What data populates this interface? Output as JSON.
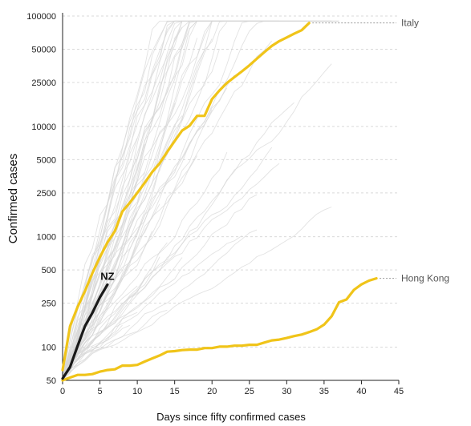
{
  "chart_data": {
    "type": "line",
    "xlabel": "Days since fifty confirmed cases",
    "ylabel": "Confirmed cases",
    "y_scale": "log",
    "xlim": [
      0,
      45
    ],
    "ylim": [
      50,
      100000
    ],
    "x_ticks": [
      0,
      5,
      10,
      15,
      20,
      25,
      30,
      35,
      40,
      45
    ],
    "y_ticks": [
      50,
      100,
      250,
      500,
      1000,
      2500,
      5000,
      10000,
      25000,
      50000,
      100000
    ],
    "y_tick_labels": [
      "50",
      "100",
      "250",
      "500",
      "1000",
      "2500",
      "5000",
      "10000",
      "25000",
      "50000",
      "100000"
    ],
    "grid": "horizontal dashed",
    "colors": {
      "highlight": "#f0c419",
      "nz": "#1a1a1a",
      "background_series": "#d6d6d6",
      "grid": "#d9d9d9"
    },
    "series": [
      {
        "name": "Italy",
        "color": "#f0c419",
        "x": [
          0,
          1,
          2,
          3,
          4,
          5,
          6,
          7,
          8,
          9,
          10,
          11,
          12,
          13,
          14,
          15,
          16,
          17,
          18,
          19,
          20,
          21,
          22,
          23,
          24,
          25,
          26,
          27,
          28,
          29,
          30,
          31,
          32,
          33
        ],
        "y": [
          62,
          155,
          230,
          322,
          470,
          655,
          888,
          1128,
          1694,
          2036,
          2502,
          3089,
          3858,
          4636,
          5883,
          7375,
          9172,
          10149,
          12462,
          12462,
          17660,
          21157,
          24747,
          27980,
          31506,
          35713,
          41035,
          47021,
          53578,
          59138,
          63927,
          69176,
          74386,
          86498
        ]
      },
      {
        "name": "Hong Kong",
        "color": "#f0c419",
        "x": [
          0,
          1,
          2,
          3,
          4,
          5,
          6,
          7,
          8,
          9,
          10,
          11,
          12,
          13,
          14,
          15,
          16,
          17,
          18,
          19,
          20,
          21,
          22,
          23,
          24,
          25,
          26,
          27,
          28,
          29,
          30,
          31,
          32,
          33,
          34,
          35,
          36,
          37,
          38,
          39,
          40,
          41,
          42
        ],
        "y": [
          50,
          53,
          56,
          56,
          57,
          60,
          62,
          63,
          68,
          68,
          69,
          74,
          79,
          84,
          91,
          92,
          94,
          95,
          95,
          98,
          98,
          101,
          101,
          103,
          103,
          105,
          105,
          110,
          115,
          117,
          121,
          126,
          130,
          137,
          145,
          160,
          190,
          255,
          270,
          330,
          370,
          400,
          420
        ]
      },
      {
        "name": "NZ",
        "color": "#1a1a1a",
        "x": [
          0,
          1,
          2,
          3,
          4,
          5,
          6
        ],
        "y": [
          52,
          66,
          102,
          155,
          205,
          283,
          368
        ]
      }
    ]
  }
}
